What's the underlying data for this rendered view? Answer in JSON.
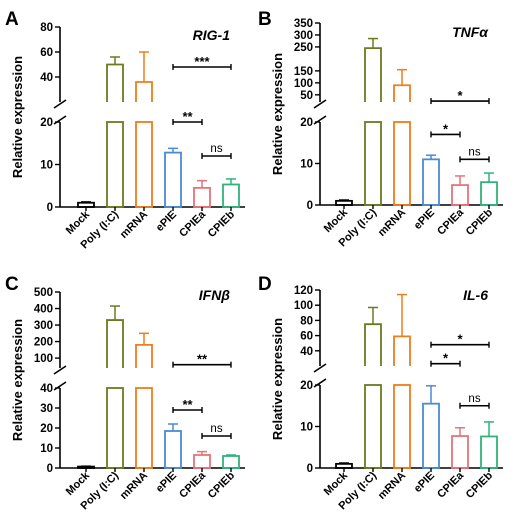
{
  "series_colors": [
    "#000000",
    "#6b7a1f",
    "#ee7d1b",
    "#4a8bd1",
    "#e6737a",
    "#2fb37a"
  ],
  "chart_data": [
    {
      "panel": "A",
      "title": "RIG-1",
      "type": "bar",
      "ylabel": "Relative expression",
      "categories": [
        "Mock",
        "Poly (I:C)",
        "mRNA",
        "ePIE",
        "CPIEa",
        "CPIEb"
      ],
      "values": [
        1,
        50,
        36,
        12.8,
        4.5,
        5.3
      ],
      "errors": [
        0.2,
        6,
        24,
        1,
        1.7,
        1.3
      ],
      "y_break": {
        "lower_range": [
          0,
          20
        ],
        "upper_range": [
          20,
          80
        ],
        "lower_ticks": [
          0,
          10,
          20
        ],
        "upper_ticks": [
          40,
          60,
          80
        ]
      },
      "significance": [
        {
          "from": 3,
          "to": 5,
          "label": "***",
          "value": 48
        },
        {
          "from": 3,
          "to": 4,
          "label": "**",
          "value": 20
        },
        {
          "from": 4,
          "to": 5,
          "label": "ns",
          "value": 12
        }
      ]
    },
    {
      "panel": "B",
      "title": "TNFα",
      "type": "bar",
      "ylabel": "Relative expression",
      "categories": [
        "Mock",
        "Poly (I:C)",
        "mRNA",
        "ePIE",
        "CPIEa",
        "CPIEb"
      ],
      "values": [
        1,
        245,
        90,
        11,
        4.8,
        5.5
      ],
      "errors": [
        0.2,
        40,
        65,
        1,
        2.2,
        2.2
      ],
      "y_break": {
        "lower_range": [
          0,
          20
        ],
        "upper_range": [
          20,
          350
        ],
        "lower_ticks": [
          0,
          10,
          20
        ],
        "upper_ticks": [
          50,
          100,
          150,
          250,
          300,
          350
        ]
      },
      "significance": [
        {
          "from": 3,
          "to": 5,
          "label": "*",
          "value": 24
        },
        {
          "from": 3,
          "to": 4,
          "label": "*",
          "value": 17
        },
        {
          "from": 4,
          "to": 5,
          "label": "ns",
          "value": 11
        }
      ]
    },
    {
      "panel": "C",
      "title": "IFNβ",
      "type": "bar",
      "ylabel": "Relative expression",
      "categories": [
        "Mock",
        "Poly (I:C)",
        "mRNA",
        "ePIE",
        "CPIEa",
        "CPIEb"
      ],
      "values": [
        0.7,
        330,
        180,
        18.5,
        6.5,
        6
      ],
      "errors": [
        0.2,
        85,
        70,
        3.5,
        1.7,
        0.5
      ],
      "y_break": {
        "lower_range": [
          0,
          40
        ],
        "upper_range": [
          40,
          500
        ],
        "lower_ticks": [
          0,
          10,
          20,
          30,
          40
        ],
        "upper_ticks": [
          100,
          200,
          300,
          400,
          500
        ]
      },
      "significance": [
        {
          "from": 3,
          "to": 5,
          "label": "**",
          "value": 60
        },
        {
          "from": 3,
          "to": 4,
          "label": "**",
          "value": 29
        },
        {
          "from": 4,
          "to": 5,
          "label": "ns",
          "value": 16
        }
      ]
    },
    {
      "panel": "D",
      "title": "IL-6",
      "type": "bar",
      "ylabel": "Relative expression",
      "categories": [
        "Mock",
        "Poly (I:C)",
        "mRNA",
        "ePIE",
        "CPIEa",
        "CPIEb"
      ],
      "values": [
        1,
        75,
        59,
        15.5,
        7.7,
        7.6
      ],
      "errors": [
        0.2,
        22,
        55,
        4.3,
        2,
        3.5
      ],
      "y_break": {
        "lower_range": [
          0,
          20
        ],
        "upper_range": [
          20,
          120
        ],
        "lower_ticks": [
          0,
          10,
          20
        ],
        "upper_ticks": [
          40,
          60,
          80,
          100,
          120
        ]
      },
      "significance": [
        {
          "from": 3,
          "to": 5,
          "label": "*",
          "value": 48
        },
        {
          "from": 3,
          "to": 4,
          "label": "*",
          "value": 23
        },
        {
          "from": 4,
          "to": 5,
          "label": "ns",
          "value": 15
        }
      ]
    }
  ]
}
